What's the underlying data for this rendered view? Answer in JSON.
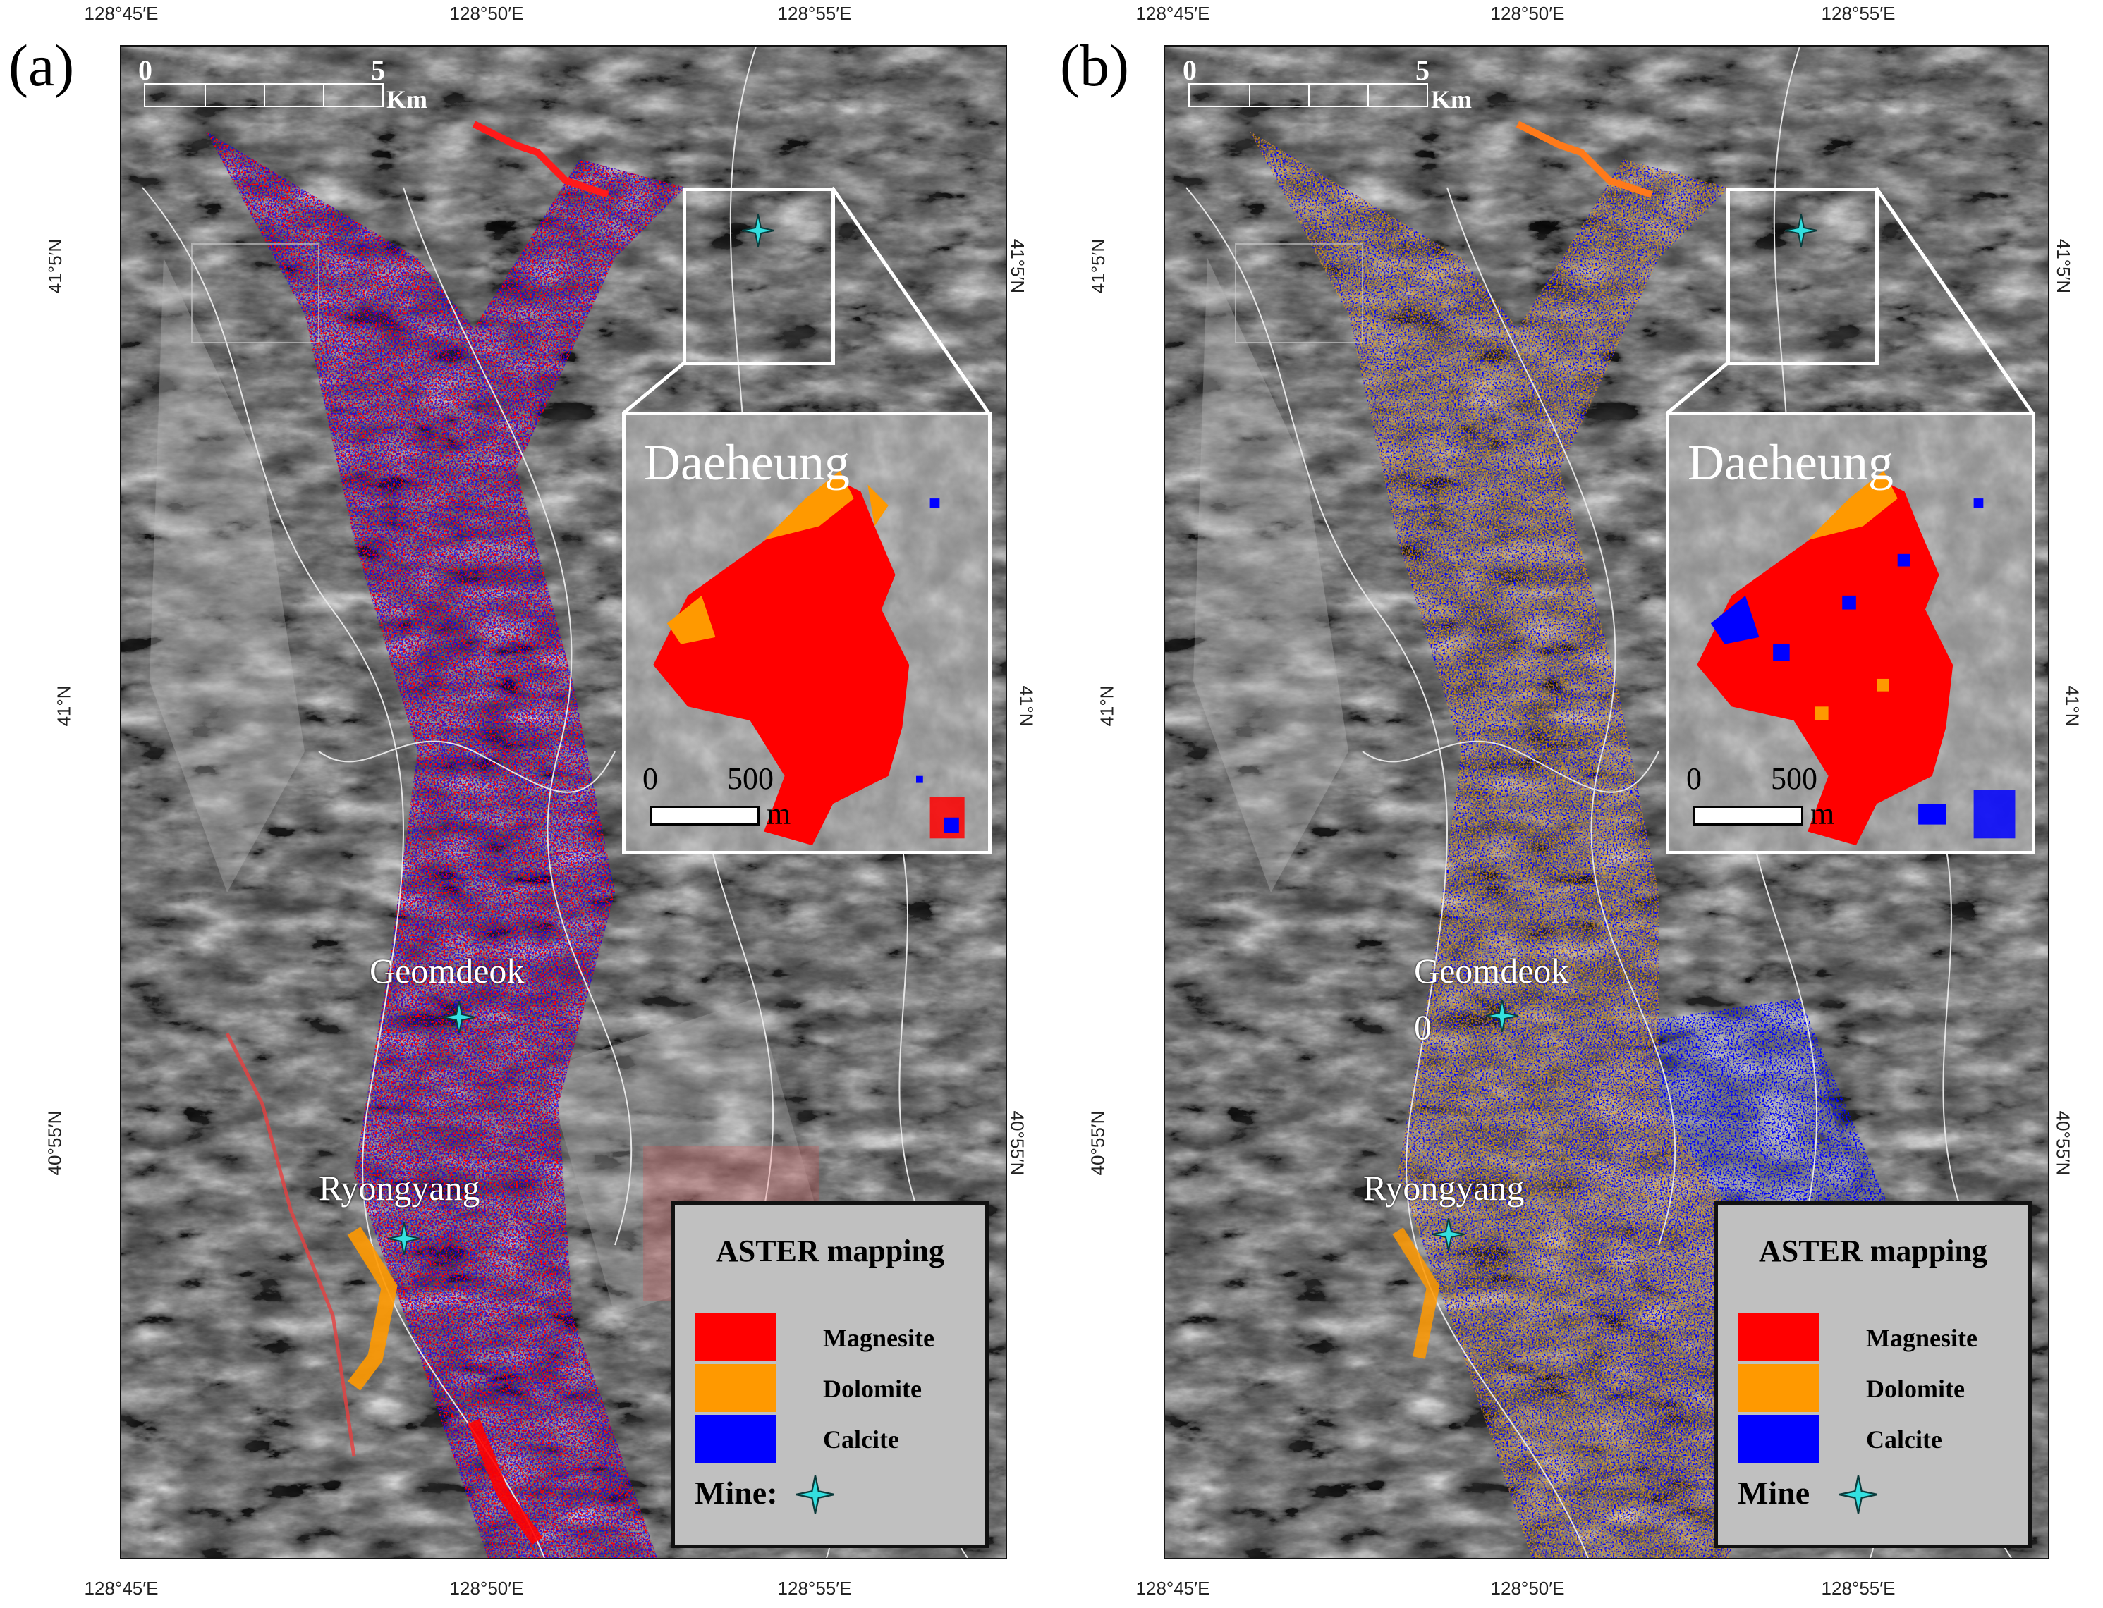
{
  "panels": [
    {
      "label": "(a)",
      "top_coords": [
        "128°45′E",
        "128°50′E",
        "128°55′E"
      ],
      "bottom_coords": [
        "128°45′E",
        "128°50′E",
        "128°55′E"
      ],
      "left_coords": [
        "41°5′N",
        "41°N",
        "40°55′N"
      ],
      "right_coords": [
        "41°5′N",
        "41°N",
        "40°55′N"
      ],
      "scale": {
        "start": "0",
        "end": "5",
        "unit": "Km"
      },
      "inset": {
        "title": "Daeheung",
        "scale_start": "0",
        "scale_end": "500",
        "scale_unit": "m"
      },
      "places": [
        "Geomdeok",
        "Ryongyang"
      ],
      "legend": {
        "title": "ASTER mapping",
        "items": [
          {
            "label": "Magnesite",
            "color": "#ff0000"
          },
          {
            "label": "Dolomite",
            "color": "#ff9900"
          },
          {
            "label": "Calcite",
            "color": "#0000ff"
          }
        ],
        "mine_label": "Mine:"
      },
      "mine_color": "#33e0e0"
    },
    {
      "label": "(b)",
      "top_coords": [
        "128°45′E",
        "128°50′E",
        "128°55′E"
      ],
      "bottom_coords": [
        "128°45′E",
        "128°50′E",
        "128°55′E"
      ],
      "left_coords": [
        "41°5′N",
        "41°N",
        "40°55′N"
      ],
      "right_coords": [
        "41°5′N",
        "41°N",
        "40°55′N"
      ],
      "scale": {
        "start": "0",
        "end": "5",
        "unit": "Km"
      },
      "inset": {
        "title": "Daeheung",
        "scale_start": "0",
        "scale_end": "500",
        "scale_unit": "m"
      },
      "places": [
        "Geomdeok",
        "Ryongyang"
      ],
      "extra_label": "0",
      "legend": {
        "title": "ASTER mapping",
        "items": [
          {
            "label": "Magnesite",
            "color": "#ff0000"
          },
          {
            "label": "Dolomite",
            "color": "#ff9900"
          },
          {
            "label": "Calcite",
            "color": "#0000ff"
          }
        ],
        "mine_label": "Mine"
      },
      "mine_color": "#33e0e0"
    }
  ]
}
